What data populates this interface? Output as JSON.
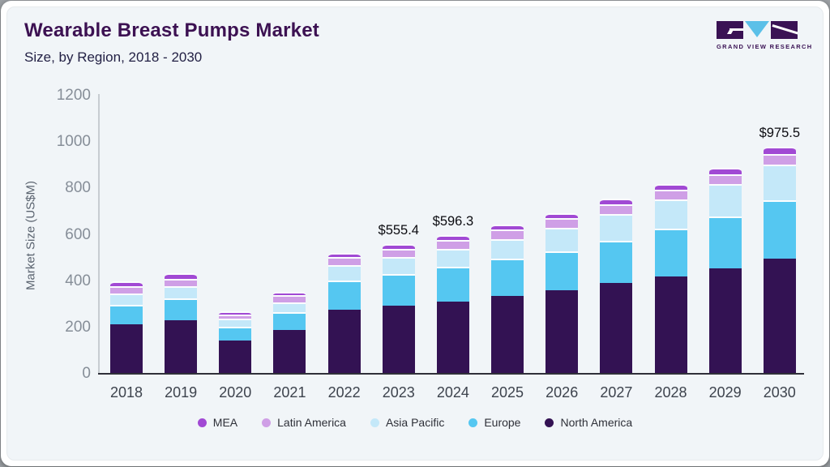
{
  "header": {
    "title": "Wearable Breast Pumps Market",
    "subtitle": "Size, by Region, 2018 - 2030",
    "title_color": "#3c1152",
    "subtitle_color": "#232145",
    "logo_brand": "GRAND VIEW RESEARCH"
  },
  "chart_data": {
    "type": "bar",
    "stacked": true,
    "title": "Wearable Breast Pumps Market",
    "subtitle": "Size, by Region, 2018 - 2030",
    "xlabel": "",
    "ylabel": "Market Size (US$M)",
    "ylim": [
      0,
      1200
    ],
    "yticks": [
      0,
      200,
      400,
      600,
      800,
      1000,
      1200
    ],
    "grid": false,
    "legend_position": "bottom",
    "categories": [
      "2018",
      "2019",
      "2020",
      "2021",
      "2022",
      "2023",
      "2024",
      "2025",
      "2026",
      "2027",
      "2028",
      "2029",
      "2030"
    ],
    "series": [
      {
        "name": "North America",
        "color": "#331253",
        "values": [
          210,
          228,
          140,
          186,
          272,
          289.0,
          309.0,
          332,
          358,
          388,
          416,
          451,
          492.0
        ]
      },
      {
        "name": "Europe",
        "color": "#55c7f1",
        "values": [
          85,
          93,
          58,
          78,
          128,
          139.0,
          149.0,
          160,
          168,
          183,
          205,
          225,
          252.0
        ]
      },
      {
        "name": "Asia Pacific",
        "color": "#c4e8f9",
        "values": [
          48,
          53,
          36,
          42,
          66,
          73.0,
          78.0,
          86,
          99,
          114,
          128,
          138,
          155.0
        ]
      },
      {
        "name": "Latin America",
        "color": "#cf9fe6",
        "values": [
          30,
          33,
          19,
          29,
          33,
          34.0,
          39.0,
          40,
          42,
          43,
          40,
          42,
          46.5
        ]
      },
      {
        "name": "MEA",
        "color": "#a149d4",
        "values": [
          21,
          22,
          13,
          15,
          20,
          20.4,
          21.3,
          22,
          23,
          24,
          25,
          28,
          30.0
        ]
      }
    ],
    "totals": [
      394,
      429,
      266,
      350,
      519,
      555.4,
      596.3,
      640,
      690,
      752,
      814,
      884,
      975.5
    ],
    "annotations": [
      {
        "category": "2023",
        "text": "$555.4"
      },
      {
        "category": "2024",
        "text": "$596.3"
      },
      {
        "category": "2030",
        "text": "$975.5"
      }
    ]
  }
}
